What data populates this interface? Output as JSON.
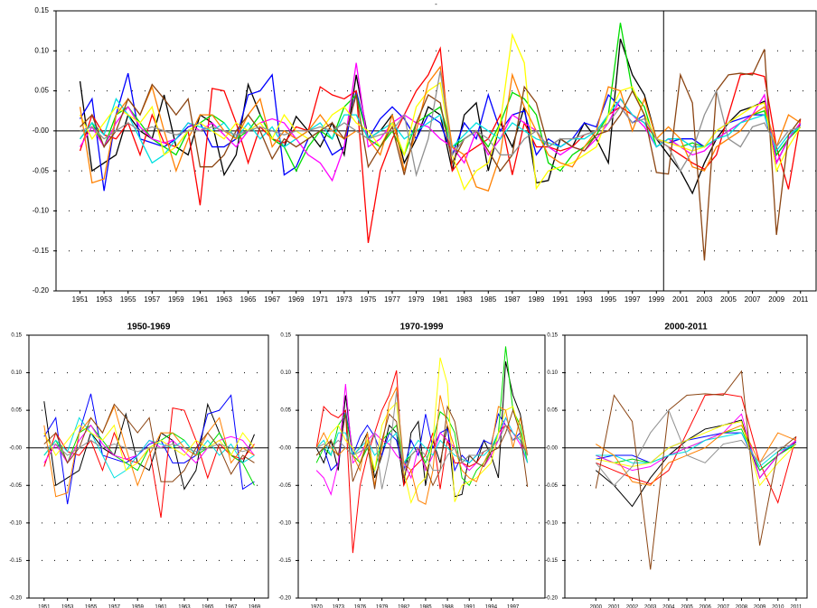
{
  "chart_data": [
    {
      "type": "line",
      "title": "-",
      "x": [
        1951,
        1952,
        1953,
        1954,
        1955,
        1956,
        1957,
        1958,
        1959,
        1960,
        1961,
        1962,
        1963,
        1964,
        1965,
        1966,
        1967,
        1968,
        1969,
        1970,
        1971,
        1972,
        1973,
        1974,
        1975,
        1976,
        1977,
        1978,
        1979,
        1980,
        1981,
        1982,
        1983,
        1984,
        1985,
        1986,
        1987,
        1988,
        1989,
        1990,
        1991,
        1992,
        1993,
        1994,
        1995,
        1996,
        1997,
        1998,
        1999,
        2000,
        2001,
        2002,
        2003,
        2004,
        2005,
        2006,
        2007,
        2008,
        2009,
        2010,
        2011
      ],
      "xlim": [
        1949,
        2012.3
      ],
      "xticks": [
        1951,
        1953,
        1955,
        1957,
        1959,
        1961,
        1963,
        1965,
        1967,
        1969,
        1971,
        1973,
        1975,
        1977,
        1979,
        1981,
        1983,
        1985,
        1987,
        1989,
        1991,
        1993,
        1995,
        1997,
        1999,
        2001,
        2003,
        2005,
        2007,
        2009,
        2011
      ],
      "ylim": [
        -0.2,
        0.15
      ],
      "yticks": [
        {
          "value": -0.2,
          "label": "-0.20"
        },
        {
          "value": -0.15,
          "label": "-0.15"
        },
        {
          "value": -0.1,
          "label": "-0.10"
        },
        {
          "value": -0.05,
          "label": "-0.05"
        },
        {
          "value": 0,
          "label": "-0.00"
        },
        {
          "value": 0.05,
          "label": "0.05"
        },
        {
          "value": 0.1,
          "label": "0.10"
        },
        {
          "value": 0.15,
          "label": "0.15"
        }
      ],
      "vline": 1999.6,
      "series": [
        {
          "color": "#000000",
          "values": [
            0.062,
            -0.05,
            -0.04,
            -0.03,
            0.02,
            0.0,
            -0.01,
            0.045,
            -0.02,
            -0.03,
            0.02,
            0.01,
            -0.055,
            -0.03,
            0.058,
            0.02,
            -0.01,
            -0.02,
            0.018,
            0.0,
            -0.02,
            0.01,
            -0.03,
            0.07,
            -0.01,
            0.0,
            0.02,
            -0.04,
            -0.01,
            0.03,
            0.02,
            -0.05,
            0.02,
            0.035,
            -0.05,
            0.01,
            -0.02,
            0.03,
            -0.065,
            -0.062,
            -0.01,
            -0.02,
            0.01,
            -0.01,
            -0.04,
            0.115,
            0.07,
            0.045,
            -0.01,
            -0.03,
            -0.05,
            -0.078,
            -0.04,
            -0.01,
            0.01,
            0.025,
            0.03,
            0.037,
            -0.04,
            -0.01,
            0.01
          ]
        },
        {
          "color": "#0000ff",
          "values": [
            0.015,
            0.04,
            -0.075,
            0.02,
            0.072,
            -0.01,
            -0.015,
            -0.02,
            -0.01,
            0.005,
            0.01,
            -0.02,
            -0.02,
            -0.01,
            0.045,
            0.05,
            0.07,
            -0.055,
            -0.045,
            -0.01,
            0.0,
            -0.03,
            -0.02,
            0.05,
            -0.01,
            0.015,
            0.03,
            0.015,
            -0.01,
            0.02,
            0.01,
            -0.03,
            0.01,
            -0.01,
            0.045,
            0.0,
            0.02,
            0.025,
            -0.03,
            -0.01,
            -0.02,
            -0.01,
            0.01,
            0.005,
            0.045,
            0.03,
            0.01,
            0.02,
            -0.01,
            -0.015,
            -0.01,
            -0.01,
            -0.02,
            0.0,
            0.01,
            0.015,
            0.02,
            0.02,
            -0.03,
            -0.01,
            0.008
          ]
        },
        {
          "color": "#ff0000",
          "values": [
            -0.025,
            0.02,
            -0.005,
            -0.01,
            0.01,
            -0.03,
            0.02,
            -0.015,
            -0.02,
            0.0,
            -0.093,
            0.053,
            0.05,
            0.01,
            -0.04,
            0.005,
            -0.01,
            -0.015,
            0.005,
            0.0,
            0.055,
            0.045,
            0.04,
            0.05,
            -0.14,
            -0.05,
            -0.01,
            0.02,
            0.05,
            0.07,
            0.103,
            -0.05,
            -0.03,
            -0.02,
            -0.01,
            0.02,
            -0.055,
            0.01,
            -0.02,
            -0.02,
            -0.025,
            -0.02,
            -0.005,
            0.0,
            0.02,
            0.03,
            0.02,
            0.01,
            -0.01,
            -0.02,
            -0.03,
            -0.04,
            -0.048,
            -0.03,
            0.02,
            0.07,
            0.072,
            0.068,
            -0.02,
            -0.073,
            0.015
          ]
        },
        {
          "color": "#00dd00",
          "values": [
            -0.01,
            0.01,
            -0.02,
            0.02,
            0.03,
            0.01,
            -0.01,
            -0.02,
            -0.03,
            0.0,
            0.01,
            0.02,
            0.01,
            -0.01,
            0.0,
            0.02,
            -0.01,
            -0.02,
            -0.05,
            -0.02,
            0.0,
            -0.01,
            0.03,
            0.045,
            -0.01,
            -0.02,
            0.0,
            -0.03,
            0.01,
            0.02,
            0.03,
            -0.02,
            -0.01,
            0.0,
            -0.02,
            0.01,
            0.048,
            0.04,
            0.02,
            -0.04,
            -0.05,
            -0.03,
            -0.02,
            -0.005,
            0.02,
            0.135,
            0.05,
            0.03,
            -0.02,
            -0.01,
            -0.02,
            -0.015,
            -0.02,
            -0.01,
            0.0,
            0.01,
            0.02,
            0.025,
            -0.03,
            -0.01,
            0.005
          ]
        },
        {
          "color": "#ff00ff",
          "values": [
            -0.02,
            0.005,
            -0.02,
            0.01,
            0.03,
            0.005,
            -0.01,
            -0.015,
            -0.01,
            0.01,
            0.0,
            0.01,
            -0.005,
            -0.02,
            0.0,
            0.01,
            0.015,
            0.01,
            -0.01,
            -0.03,
            -0.04,
            -0.062,
            -0.02,
            0.085,
            -0.02,
            -0.01,
            0.01,
            0.02,
            0.01,
            0.005,
            -0.01,
            -0.02,
            -0.04,
            0.0,
            -0.03,
            -0.01,
            0.02,
            0.01,
            0.0,
            -0.02,
            -0.03,
            -0.02,
            -0.025,
            -0.01,
            0.01,
            0.04,
            0.02,
            0.005,
            -0.02,
            -0.01,
            -0.02,
            -0.03,
            -0.025,
            -0.01,
            0.0,
            0.01,
            0.02,
            0.045,
            -0.04,
            -0.01,
            0.01
          ]
        },
        {
          "color": "#00e0e0",
          "values": [
            -0.01,
            0.01,
            -0.005,
            0.04,
            0.02,
            -0.01,
            -0.04,
            -0.03,
            -0.01,
            0.01,
            0.005,
            0.0,
            0.01,
            -0.01,
            0.01,
            -0.01,
            0.005,
            -0.02,
            -0.01,
            0.0,
            0.01,
            -0.01,
            0.02,
            0.02,
            -0.01,
            0.0,
            0.01,
            -0.01,
            0.0,
            0.01,
            0.02,
            -0.02,
            -0.005,
            0.01,
            0.0,
            -0.01,
            0.01,
            0.0,
            -0.01,
            -0.015,
            -0.02,
            -0.01,
            -0.01,
            0.0,
            0.02,
            0.04,
            0.02,
            0.01,
            -0.02,
            -0.01,
            -0.01,
            -0.02,
            -0.02,
            -0.01,
            -0.005,
            0.01,
            0.015,
            0.02,
            -0.025,
            -0.005,
            0.005
          ]
        },
        {
          "color": "#ffff00",
          "values": [
            0.02,
            -0.01,
            0.01,
            0.03,
            0.02,
            0.01,
            0.03,
            -0.03,
            -0.02,
            0.0,
            0.01,
            0.0,
            -0.01,
            0.01,
            0.0,
            0.01,
            -0.01,
            0.02,
            0.0,
            -0.01,
            0.0,
            0.02,
            0.03,
            0.01,
            0.0,
            -0.02,
            0.01,
            -0.03,
            0.03,
            0.05,
            0.06,
            -0.03,
            -0.073,
            -0.05,
            -0.04,
            0.01,
            0.12,
            0.085,
            -0.072,
            -0.05,
            -0.045,
            -0.04,
            -0.03,
            -0.02,
            0.02,
            0.05,
            0.055,
            0.02,
            -0.01,
            -0.015,
            -0.02,
            -0.025,
            -0.02,
            0.0,
            0.01,
            0.02,
            0.03,
            0.035,
            -0.05,
            -0.02,
            0.005
          ]
        },
        {
          "color": "#ff8000",
          "values": [
            0.03,
            -0.065,
            -0.06,
            0.02,
            0.04,
            0.02,
            0.055,
            0.0,
            -0.05,
            -0.01,
            0.02,
            0.02,
            0.0,
            -0.01,
            0.02,
            0.04,
            -0.02,
            0.0,
            -0.01,
            0.0,
            0.02,
            0.0,
            -0.01,
            0.0,
            -0.01,
            -0.03,
            0.02,
            -0.05,
            0.0,
            0.06,
            0.08,
            -0.02,
            -0.03,
            -0.07,
            -0.075,
            -0.03,
            0.07,
            0.03,
            0.0,
            -0.03,
            -0.04,
            -0.045,
            -0.02,
            0.0,
            0.055,
            0.05,
            0.0,
            0.04,
            -0.01,
            0.005,
            -0.01,
            -0.045,
            -0.05,
            -0.02,
            -0.01,
            0.0,
            0.02,
            0.03,
            -0.02,
            0.02,
            0.01
          ]
        },
        {
          "color": "#8b4513",
          "values": [
            0.005,
            0.02,
            -0.02,
            0.0,
            0.04,
            0.02,
            0.058,
            0.04,
            0.02,
            0.04,
            -0.045,
            -0.045,
            -0.03,
            0.0,
            0.02,
            0.0,
            -0.035,
            -0.01,
            -0.02,
            -0.01,
            0.0,
            0.01,
            -0.01,
            0.045,
            -0.045,
            -0.02,
            0.005,
            -0.055,
            0.01,
            0.045,
            0.035,
            -0.04,
            -0.01,
            0.0,
            -0.025,
            -0.05,
            -0.03,
            0.055,
            0.035,
            -0.02,
            -0.01,
            -0.02,
            -0.025,
            -0.005,
            0.0,
            0.02,
            0.05,
            0.02,
            -0.052,
            -0.054,
            0.07,
            0.035,
            -0.162,
            0.05,
            0.07,
            0.072,
            0.07,
            0.102,
            -0.13,
            -0.005,
            0.015
          ]
        },
        {
          "color": "#909090",
          "values": [
            0.0,
            0.005,
            -0.01,
            0.0,
            0.01,
            0.0,
            0.005,
            0.0,
            -0.005,
            0.0,
            0.0,
            0.005,
            0.0,
            -0.005,
            0.0,
            0.005,
            0.0,
            -0.005,
            0.0,
            0.0,
            0.005,
            0.0,
            0.01,
            0.0,
            -0.01,
            -0.005,
            0.0,
            0.02,
            -0.055,
            -0.01,
            0.075,
            -0.03,
            -0.01,
            0.0,
            -0.01,
            -0.03,
            -0.03,
            -0.01,
            0.0,
            -0.02,
            -0.01,
            -0.01,
            -0.005,
            0.0,
            0.01,
            0.03,
            0.01,
            0.015,
            -0.01,
            -0.02,
            -0.05,
            -0.025,
            0.02,
            0.05,
            -0.01,
            -0.02,
            0.005,
            0.01,
            -0.02,
            0.0,
            0.005
          ]
        }
      ]
    },
    {
      "type": "line",
      "title": "1950-1969",
      "years": [
        1951,
        1952,
        1953,
        1954,
        1955,
        1956,
        1957,
        1958,
        1959,
        1960,
        1961,
        1962,
        1963,
        1964,
        1965,
        1966,
        1967,
        1968,
        1969
      ],
      "xlim": [
        1949.7,
        1970.2
      ],
      "xticks": [
        1951,
        1953,
        1955,
        1957,
        1959,
        1961,
        1963,
        1965,
        1967,
        1969
      ],
      "ylim": [
        -0.2,
        0.15
      ],
      "yticks": [
        {
          "value": -0.2,
          "label": "-0.20"
        },
        {
          "value": -0.15,
          "label": "-0.15"
        },
        {
          "value": -0.1,
          "label": "-0.10"
        },
        {
          "value": -0.05,
          "label": "-0.05"
        },
        {
          "value": 0,
          "label": "-0.00"
        },
        {
          "value": 0.05,
          "label": "0.05"
        },
        {
          "value": 0.1,
          "label": "0.10"
        },
        {
          "value": 0.15,
          "label": "0.15"
        }
      ]
    },
    {
      "type": "line",
      "title": "1970-1999",
      "years": [
        1970,
        1971,
        1972,
        1973,
        1974,
        1975,
        1976,
        1977,
        1978,
        1979,
        1980,
        1981,
        1982,
        1983,
        1984,
        1985,
        1986,
        1987,
        1988,
        1989,
        1990,
        1991,
        1992,
        1993,
        1994,
        1995,
        1996,
        1997,
        1998,
        1999
      ],
      "xlim": [
        1967.5,
        2001.4
      ],
      "xticks": [
        1970,
        1973,
        1976,
        1979,
        1982,
        1985,
        1988,
        1991,
        1994,
        1997
      ],
      "ylim": [
        -0.2,
        0.15
      ],
      "yticks": [
        {
          "value": -0.2,
          "label": "-0.20"
        },
        {
          "value": -0.15,
          "label": "-0.15"
        },
        {
          "value": -0.1,
          "label": "-0.10"
        },
        {
          "value": -0.05,
          "label": "-0.05"
        },
        {
          "value": 0,
          "label": "-0.00"
        },
        {
          "value": 0.05,
          "label": "0.05"
        },
        {
          "value": 0.1,
          "label": "0.10"
        },
        {
          "value": 0.15,
          "label": "0.15"
        }
      ]
    },
    {
      "type": "line",
      "title": "2000-2011",
      "years": [
        2000,
        2001,
        2002,
        2003,
        2004,
        2005,
        2006,
        2007,
        2008,
        2009,
        2010,
        2011
      ],
      "xlim": [
        1998.3,
        2011.6
      ],
      "xticks": [
        2000,
        2001,
        2002,
        2003,
        2004,
        2005,
        2006,
        2007,
        2008,
        2009,
        2010,
        2011
      ],
      "ylim": [
        -0.2,
        0.15
      ],
      "yticks": [
        {
          "value": -0.2,
          "label": "-0.20"
        },
        {
          "value": -0.15,
          "label": "-0.15"
        },
        {
          "value": -0.1,
          "label": "-0.10"
        },
        {
          "value": -0.05,
          "label": "-0.05"
        },
        {
          "value": 0,
          "label": "-0.00"
        },
        {
          "value": 0.05,
          "label": "0.05"
        },
        {
          "value": 0.1,
          "label": "0.10"
        },
        {
          "value": 0.15,
          "label": "0.15"
        }
      ]
    }
  ]
}
